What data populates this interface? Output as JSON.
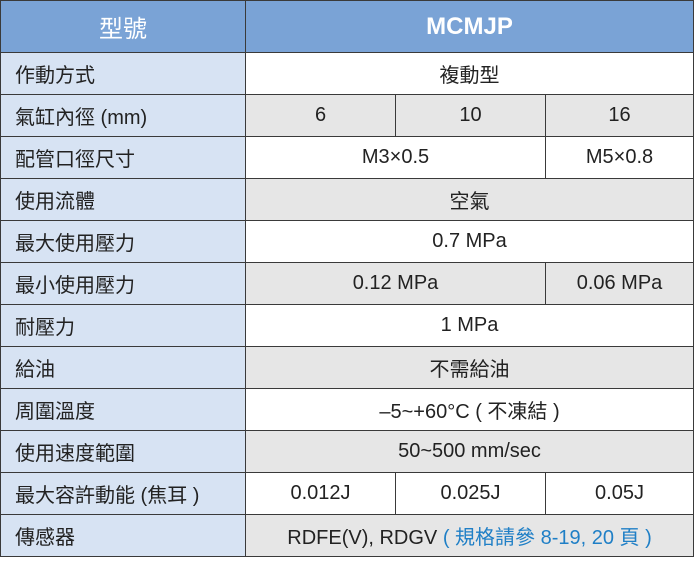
{
  "header": {
    "label": "型號",
    "model": "MCMJP"
  },
  "colors": {
    "header_bg": "#7aa3d6",
    "label_bg": "#d7e3f3",
    "gray_row": "#e6e6e6",
    "note": "#1f7fc6"
  },
  "rows": [
    {
      "label": "作動方式",
      "cells": [
        {
          "text": "複動型",
          "span": 3
        }
      ]
    },
    {
      "label": "氣缸內徑 (mm)",
      "cells": [
        {
          "text": "6",
          "span": 1
        },
        {
          "text": "10",
          "span": 1
        },
        {
          "text": "16",
          "span": 1
        }
      ]
    },
    {
      "label": "配管口徑尺寸",
      "cells": [
        {
          "text": "M3×0.5",
          "span": 2
        },
        {
          "text": "M5×0.8",
          "span": 1
        }
      ]
    },
    {
      "label": "使用流體",
      "cells": [
        {
          "text": "空氣",
          "span": 3
        }
      ]
    },
    {
      "label": "最大使用壓力",
      "cells": [
        {
          "text": "0.7 MPa",
          "span": 3
        }
      ]
    },
    {
      "label": "最小使用壓力",
      "cells": [
        {
          "text": "0.12 MPa",
          "span": 2
        },
        {
          "text": "0.06 MPa",
          "span": 1
        }
      ]
    },
    {
      "label": "耐壓力",
      "cells": [
        {
          "text": "1 MPa",
          "span": 3
        }
      ]
    },
    {
      "label": "給油",
      "cells": [
        {
          "text": "不需給油",
          "span": 3
        }
      ]
    },
    {
      "label": "周圍溫度",
      "cells": [
        {
          "text": "–5~+60°C ( 不凍結 )",
          "span": 3
        }
      ]
    },
    {
      "label": "使用速度範圍",
      "cells": [
        {
          "text": "50~500 mm/sec",
          "span": 3
        }
      ]
    },
    {
      "label": "最大容許動能 (焦耳 )",
      "cells": [
        {
          "text": "0.012J",
          "span": 1
        },
        {
          "text": "0.025J",
          "span": 1
        },
        {
          "text": "0.05J",
          "span": 1
        }
      ]
    },
    {
      "label": "傳感器",
      "cells": [
        {
          "text": "RDFE(V), RDGV ",
          "note": "( 規格請參 8-19, 20 頁 )",
          "span": 3
        }
      ]
    }
  ]
}
